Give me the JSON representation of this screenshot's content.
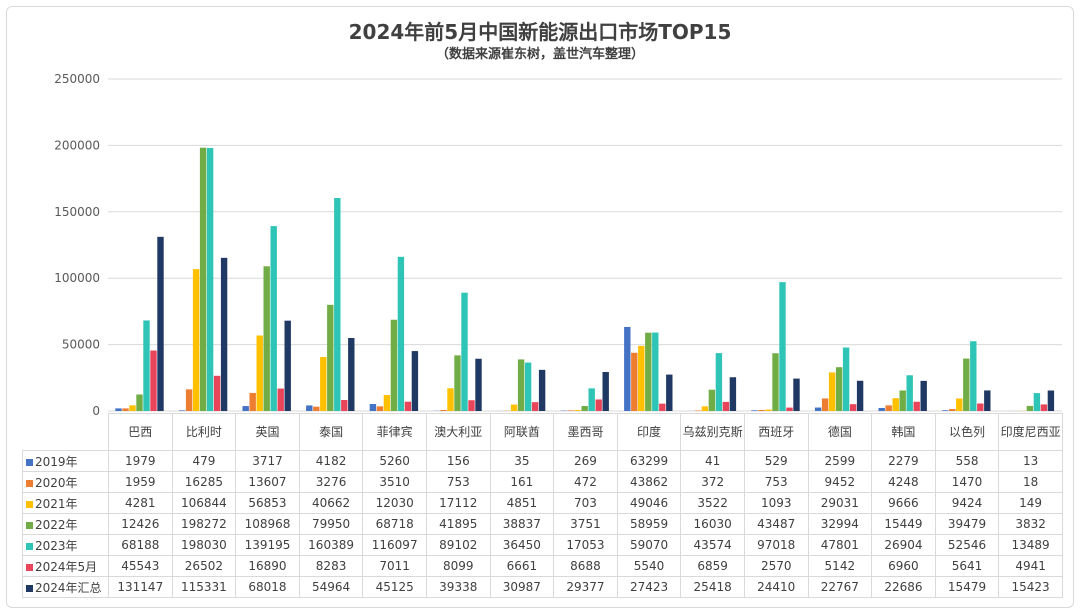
{
  "chart_data": {
    "type": "bar",
    "title": "2024年前5月中国新能源出口市场TOP15",
    "subtitle": "（数据来源崔东树，盖世汽车整理）",
    "categories": [
      "巴西",
      "比利时",
      "英国",
      "泰国",
      "菲律宾",
      "澳大利亚",
      "阿联酋",
      "墨西哥",
      "印度",
      "乌兹别克斯",
      "西班牙",
      "德国",
      "韩国",
      "以色列",
      "印度尼西亚"
    ],
    "ylim": [
      0,
      250000
    ],
    "yticks": [
      "0",
      "50000",
      "100000",
      "150000",
      "200000",
      "250000"
    ],
    "grid": true,
    "legend": "data-table",
    "series": [
      {
        "name": "2019年",
        "color": "#4472C4",
        "values": [
          1979,
          479,
          3717,
          4182,
          5260,
          156,
          35,
          269,
          63299,
          41,
          529,
          2599,
          2279,
          558,
          13
        ]
      },
      {
        "name": "2020年",
        "color": "#ED7D31",
        "values": [
          1959,
          16285,
          13607,
          3276,
          3510,
          753,
          161,
          472,
          43862,
          372,
          753,
          9452,
          4248,
          1470,
          18
        ]
      },
      {
        "name": "2021年",
        "color": "#FFC000",
        "values": [
          4281,
          106844,
          56853,
          40662,
          12030,
          17112,
          4851,
          703,
          49046,
          3522,
          1093,
          29031,
          9666,
          9424,
          149
        ]
      },
      {
        "name": "2022年",
        "color": "#70AD47",
        "values": [
          12426,
          198272,
          108968,
          79950,
          68718,
          41895,
          38837,
          3751,
          58959,
          16030,
          43487,
          32994,
          15449,
          39479,
          3832
        ]
      },
      {
        "name": "2023年",
        "color": "#2EC4B6",
        "values": [
          68188,
          198030,
          139195,
          160389,
          116097,
          89102,
          36450,
          17053,
          59070,
          43574,
          97018,
          47801,
          26904,
          52546,
          13489
        ]
      },
      {
        "name": "2024年5月",
        "color": "#E8445A",
        "values": [
          45543,
          26502,
          16890,
          8283,
          7011,
          8099,
          6661,
          8688,
          5540,
          6859,
          2570,
          5142,
          6960,
          5641,
          4941
        ]
      },
      {
        "name": "2024年汇总",
        "color": "#203864",
        "values": [
          131147,
          115331,
          68018,
          54964,
          45125,
          39338,
          30987,
          29377,
          27423,
          25418,
          24410,
          22767,
          22686,
          15479,
          15423
        ]
      }
    ]
  }
}
